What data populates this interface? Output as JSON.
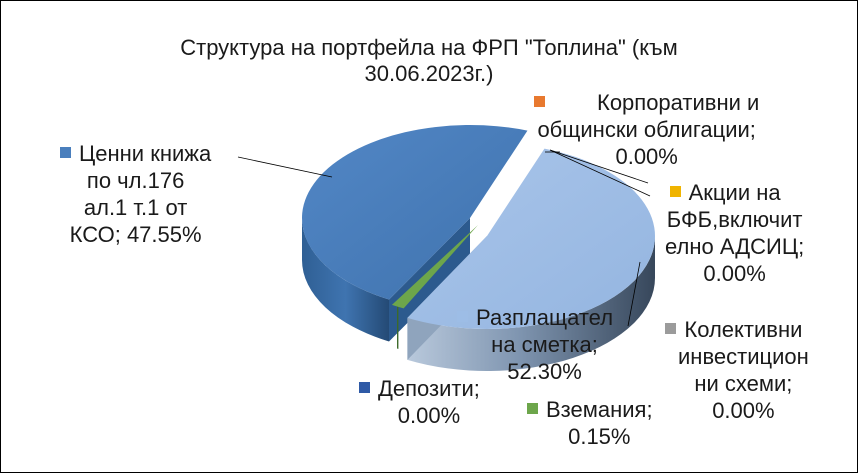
{
  "chart_data": {
    "type": "pie",
    "title_lines": [
      "Структура  на портфейла на ФРП \"Топлина\" (към",
      "30.06.2023г.)"
    ],
    "slices": [
      {
        "name": "Разплащателна сметка",
        "value": 52.3,
        "color": "#9dbde6",
        "label_lines": [
          "Разплащател",
          "на сметка;",
          "52.30%"
        ]
      },
      {
        "name": "Корпоративни и общински облигации",
        "value": 0.0,
        "color": "#e8792f",
        "label_lines": [
          "Корпоративни и",
          "общински облигации;",
          "0.00%"
        ]
      },
      {
        "name": "Акции на БФБ,включително АДСИЦ",
        "value": 0.0,
        "color": "#f0b400",
        "label_lines": [
          "Акции на",
          "БФБ,включит",
          "елно АДСИЦ;",
          "0.00%"
        ]
      },
      {
        "name": "Колективни инвестиционни схеми",
        "value": 0.0,
        "color": "#9b9b9b",
        "label_lines": [
          "Колективни",
          "инвестицион",
          "ни схеми;",
          "0.00%"
        ]
      },
      {
        "name": "Вземания",
        "value": 0.15,
        "color": "#6da64b",
        "label_lines": [
          "Вземания;",
          "0.15%"
        ]
      },
      {
        "name": "Депозити",
        "value": 0.0,
        "color": "#2f5aa6",
        "label_lines": [
          "Депозити;",
          "0.00%"
        ]
      },
      {
        "name": "Ценни книжа по чл.176 ал.1 т.1 от КСО",
        "value": 47.55,
        "color": "#4a7fbd",
        "label_lines": [
          "Ценни книжа",
          "по чл.176",
          "ал.1 т.1 от",
          "КСО; 47.55%"
        ]
      }
    ],
    "style": "3d-exploded"
  }
}
